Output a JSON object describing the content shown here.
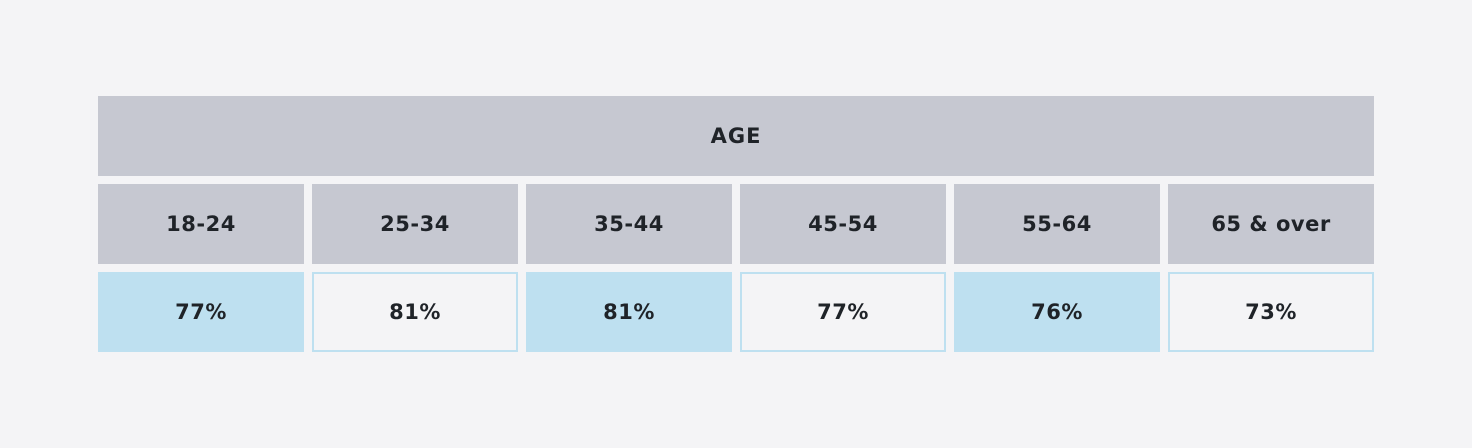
{
  "chart_data": {
    "type": "table",
    "title": "AGE",
    "categories": [
      "18-24",
      "25-34",
      "35-44",
      "45-54",
      "55-64",
      "65 & over"
    ],
    "values": [
      "77%",
      "81%",
      "81%",
      "77%",
      "76%",
      "73%"
    ],
    "numeric_values": [
      77,
      81,
      81,
      77,
      76,
      73
    ],
    "unit": "%",
    "colors": {
      "header_bg": "#c6c8d1",
      "highlight": "#bee0f0",
      "background": "#f4f4f6",
      "text": "#1f2328"
    }
  }
}
